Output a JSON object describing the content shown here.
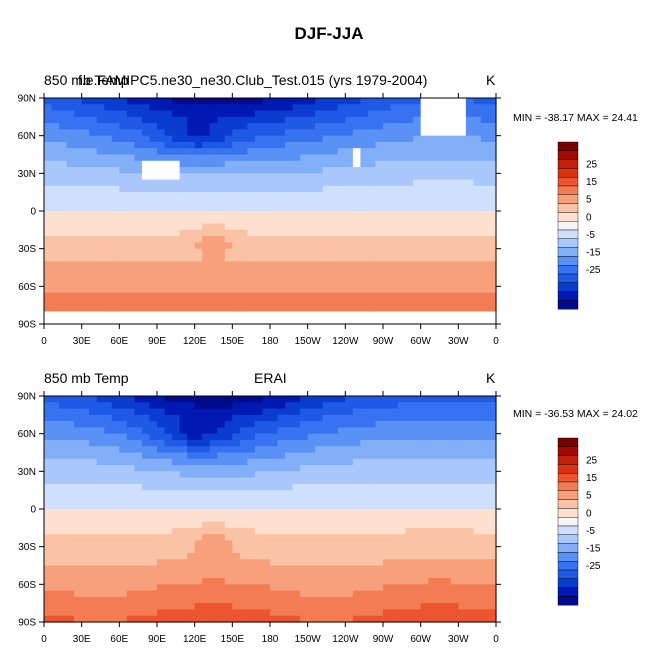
{
  "title": "DJF-JJA",
  "colorbar": {
    "colors": [
      "#000a8c",
      "#0019b3",
      "#0a3cd2",
      "#1e5ae6",
      "#3773f0",
      "#5a91f5",
      "#82aff8",
      "#aac8fb",
      "#cfe0fd",
      "#f6f6f6",
      "#fde0cf",
      "#fbc3a5",
      "#f8a07c",
      "#f47c55",
      "#ec5530",
      "#dc3214",
      "#c31e0a",
      "#a00a00",
      "#780000"
    ],
    "labels": [
      "25",
      "15",
      "5",
      "0",
      "-5",
      "-15",
      "-25"
    ]
  },
  "chart_data": [
    {
      "type": "heatmap",
      "title_left": "850 mb Temp",
      "title_center": "f.e.FAMIPC5.ne30_ne30.Club_Test.015 (yrs 1979-2004)",
      "title_right": "K",
      "min_max": "MIN = -38.17 MAX =  24.41",
      "x_tick_labels": [
        "0",
        "30E",
        "60E",
        "90E",
        "120E",
        "150E",
        "180",
        "150W",
        "120W",
        "90W",
        "60W",
        "30W",
        "0"
      ],
      "y_tick_labels": [
        "90N",
        "60N",
        "30N",
        "0",
        "30S",
        "60S",
        "90S"
      ],
      "ylim": [
        -90,
        90
      ],
      "xlim": [
        0,
        360
      ]
    },
    {
      "type": "heatmap",
      "title_left": "850 mb Temp",
      "title_center": "ERAI",
      "title_right": "K",
      "min_max": "MIN = -36.53 MAX =  24.02",
      "x_tick_labels": [
        "0",
        "30E",
        "60E",
        "90E",
        "120E",
        "150E",
        "180",
        "150W",
        "120W",
        "90W",
        "60W",
        "30W",
        "0"
      ],
      "y_tick_labels": [
        "90N",
        "60N",
        "30N",
        "0",
        "30S",
        "60S",
        "90S"
      ],
      "ylim": [
        -90,
        90
      ],
      "xlim": [
        0,
        360
      ]
    }
  ]
}
